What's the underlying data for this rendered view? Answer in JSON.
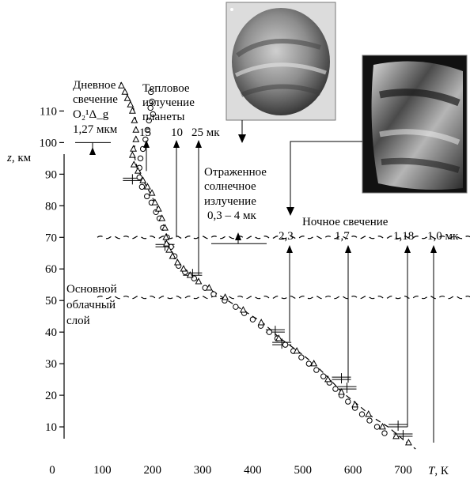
{
  "chart_data": {
    "type": "scatter",
    "xlabel_var": "T",
    "xlabel_unit": ", К",
    "ylabel_var": "z",
    "ylabel_unit": ", км",
    "xlim": [
      0,
      750
    ],
    "ylim": [
      0,
      120
    ],
    "x_ticks": [
      "0",
      "100",
      "200",
      "300",
      "400",
      "500",
      "600",
      "700"
    ],
    "y_ticks": [
      "10",
      "20",
      "30",
      "40",
      "50",
      "60",
      "70",
      "80",
      "90",
      "100",
      "110"
    ],
    "series": [
      {
        "marker": "circle",
        "points": [
          [
            197,
            116
          ],
          [
            199,
            113
          ],
          [
            196,
            111
          ],
          [
            201,
            109
          ],
          [
            193,
            107
          ],
          [
            190,
            104
          ],
          [
            186,
            101
          ],
          [
            181,
            98
          ],
          [
            176,
            95
          ],
          [
            174,
            92
          ],
          [
            174,
            89
          ],
          [
            179,
            86
          ],
          [
            189,
            83
          ],
          [
            198,
            81
          ],
          [
            207,
            78
          ],
          [
            214,
            76
          ],
          [
            221,
            73
          ],
          [
            229,
            70
          ],
          [
            237,
            67
          ],
          [
            244,
            64
          ],
          [
            252,
            61
          ],
          [
            265,
            59
          ],
          [
            283,
            57
          ],
          [
            305,
            54
          ],
          [
            322,
            52
          ],
          [
            344,
            50
          ],
          [
            366,
            48
          ],
          [
            383,
            46
          ],
          [
            400,
            44
          ],
          [
            416,
            42
          ],
          [
            433,
            40
          ],
          [
            449,
            38
          ],
          [
            465,
            36
          ],
          [
            481,
            34
          ],
          [
            497,
            32
          ],
          [
            512,
            30
          ],
          [
            527,
            28
          ],
          [
            541,
            26
          ],
          [
            553,
            24
          ],
          [
            565,
            22
          ],
          [
            577,
            20
          ],
          [
            590,
            18
          ],
          [
            604,
            16
          ],
          [
            618,
            14
          ],
          [
            633,
            12
          ],
          [
            648,
            10
          ],
          [
            663,
            8
          ]
        ]
      },
      {
        "marker": "triangle",
        "points": [
          [
            138,
            118
          ],
          [
            145,
            116
          ],
          [
            150,
            114
          ],
          [
            156,
            112
          ],
          [
            160,
            110
          ],
          [
            164,
            107
          ],
          [
            167,
            104
          ],
          [
            167,
            101
          ],
          [
            162,
            98
          ],
          [
            160,
            96
          ],
          [
            163,
            93
          ],
          [
            171,
            91
          ],
          [
            181,
            88
          ],
          [
            190,
            86
          ],
          [
            199,
            84
          ],
          [
            205,
            81
          ],
          [
            212,
            79
          ],
          [
            219,
            76
          ],
          [
            225,
            73
          ],
          [
            227,
            70
          ],
          [
            228,
            68
          ],
          [
            233,
            66
          ],
          [
            240,
            64
          ],
          [
            250,
            62
          ],
          [
            262,
            60
          ],
          [
            275,
            58
          ],
          [
            292,
            56
          ],
          [
            313,
            54
          ],
          [
            345,
            51
          ],
          [
            381,
            47
          ],
          [
            417,
            43
          ],
          [
            452,
            38
          ],
          [
            488,
            34
          ],
          [
            522,
            30
          ],
          [
            550,
            25
          ],
          [
            577,
            21
          ],
          [
            604,
            17
          ],
          [
            631,
            14
          ],
          [
            659,
            10
          ],
          [
            686,
            7
          ],
          [
            711,
            5
          ]
        ]
      }
    ],
    "error_bars": [
      [
        160,
        88
      ],
      [
        225,
        67
      ],
      [
        280,
        58
      ],
      [
        445,
        40
      ],
      [
        458,
        36
      ],
      [
        577,
        25
      ],
      [
        588,
        22
      ],
      [
        690,
        10
      ],
      [
        700,
        7
      ]
    ],
    "fit_curve": [
      [
        136,
        119
      ],
      [
        150,
        115
      ],
      [
        162,
        111
      ],
      [
        167,
        107
      ],
      [
        168,
        103
      ],
      [
        166,
        100
      ],
      [
        162,
        97
      ],
      [
        168,
        93
      ],
      [
        178,
        89
      ],
      [
        192,
        85
      ],
      [
        205,
        81
      ],
      [
        216,
        77
      ],
      [
        224,
        73
      ],
      [
        230,
        70
      ],
      [
        234,
        67
      ],
      [
        244,
        64
      ],
      [
        258,
        61
      ],
      [
        278,
        58
      ],
      [
        300,
        55
      ],
      [
        340,
        51
      ],
      [
        380,
        47
      ],
      [
        420,
        43
      ],
      [
        455,
        38
      ],
      [
        490,
        34
      ],
      [
        522,
        30
      ],
      [
        548,
        26
      ],
      [
        578,
        21
      ],
      [
        610,
        17
      ],
      [
        640,
        13
      ],
      [
        670,
        10
      ],
      [
        700,
        6
      ],
      [
        725,
        3
      ]
    ],
    "cloud_layer": {
      "label_lines": [
        "Основной",
        "облачный",
        "слой"
      ],
      "top_km": 70,
      "bottom_km": 51
    },
    "annotations": {
      "dayglow": {
        "lines": [
          "Дневное",
          "свечение",
          "О₂¹Δ_g",
          "1,27 мкм"
        ],
        "level_km": 100
      },
      "thermal": {
        "lines": [
          "Тепловое",
          "излучение",
          "планеты"
        ],
        "wavelengths": [
          "15",
          "10",
          "25 мк"
        ],
        "levels_km": [
          91,
          70,
          58
        ]
      },
      "reflected": {
        "lines": [
          "Отраженное",
          "солнечное",
          "излучение",
          "0,3 – 4 мк"
        ],
        "level_km": 68
      },
      "nightglow": {
        "title": "Ночное свечение",
        "wavelengths": [
          "2,3",
          "1,7",
          "1,18",
          "1,0 мк"
        ],
        "levels_km": [
          37,
          24,
          10,
          5
        ]
      }
    }
  },
  "images": [
    {
      "name": "venus-dayside-image",
      "colors": [
        "#2a2a2a",
        "#bfbfbf"
      ]
    },
    {
      "name": "venus-nightside-image",
      "colors": [
        "#101010",
        "#e0e0e0"
      ]
    }
  ]
}
